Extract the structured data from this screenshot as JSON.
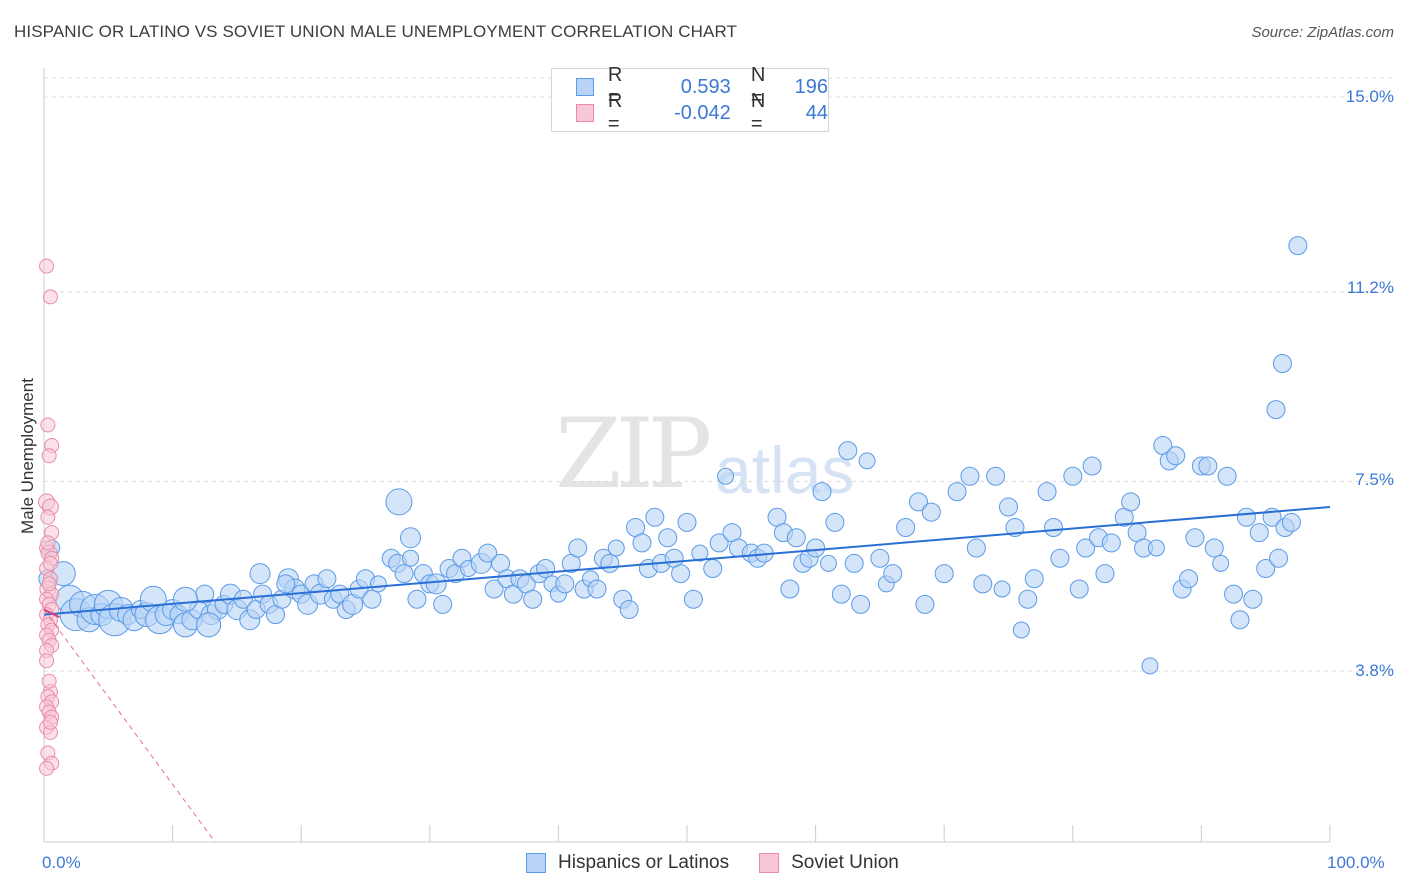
{
  "title": "HISPANIC OR LATINO VS SOVIET UNION MALE UNEMPLOYMENT CORRELATION CHART",
  "source": "Source: ZipAtlas.com",
  "watermark": {
    "zip": "ZIP",
    "atlas": "atlas"
  },
  "legend": {
    "rows": [
      {
        "r_label": "R =",
        "r_value": "0.593",
        "n_label": "N =",
        "n_value": "196",
        "color": "#5b9be8",
        "fill": "#b8d3f5"
      },
      {
        "r_label": "R =",
        "r_value": "-0.042",
        "n_label": "N =",
        "n_value": "44",
        "color": "#ea8bab",
        "fill": "#f8c8d6"
      }
    ]
  },
  "bottom_legend": [
    "Hispanics or Latinos",
    "Soviet Union"
  ],
  "colors": {
    "blue": "#5b9be8",
    "blue_fill": "#b8d3f5",
    "blue_line": "#2a6fd6",
    "pink": "#ea8bab",
    "pink_fill": "#f8c8d6",
    "tick": "#3b78d8"
  },
  "chart_data": {
    "type": "scatter",
    "title": "HISPANIC OR LATINO VS SOVIET UNION MALE UNEMPLOYMENT CORRELATION CHART",
    "xlabel": "",
    "ylabel": "Male Unemployment",
    "xlim": [
      0,
      100
    ],
    "ylim": [
      0,
      15.5
    ],
    "x_tick_labels": [
      "0.0%",
      "100.0%"
    ],
    "y_ticks": [
      3.8,
      7.5,
      11.2,
      15.0
    ],
    "y_tick_labels": [
      "3.8%",
      "7.5%",
      "11.2%",
      "15.0%"
    ],
    "grid": true,
    "legend_position": "top-center",
    "series": [
      {
        "name": "Hispanics or Latinos",
        "trend": [
          [
            0,
            4.9
          ],
          [
            100,
            7.0
          ]
        ],
        "points": [
          [
            0.3,
            5.6,
            9
          ],
          [
            0.6,
            6.2,
            8
          ],
          [
            1.5,
            5.7,
            12
          ],
          [
            2.0,
            5.2,
            14
          ],
          [
            2.5,
            4.9,
            16
          ],
          [
            3.0,
            5.1,
            13
          ],
          [
            3.5,
            4.8,
            12
          ],
          [
            4.0,
            5.0,
            15
          ],
          [
            4.5,
            4.9,
            11
          ],
          [
            5.0,
            5.1,
            14
          ],
          [
            5.5,
            4.8,
            16
          ],
          [
            6.0,
            5.0,
            12
          ],
          [
            6.5,
            4.9,
            10
          ],
          [
            7.0,
            4.8,
            11
          ],
          [
            7.5,
            5.0,
            9
          ],
          [
            8.0,
            4.9,
            12
          ],
          [
            8.5,
            5.2,
            13
          ],
          [
            9.0,
            4.8,
            14
          ],
          [
            9.5,
            4.9,
            11
          ],
          [
            10.0,
            5.0,
            10
          ],
          [
            10.5,
            4.9,
            9
          ],
          [
            11.0,
            4.7,
            12
          ],
          [
            11.5,
            4.8,
            10
          ],
          [
            12.0,
            5.0,
            9
          ],
          [
            12.5,
            5.3,
            9
          ],
          [
            13.0,
            4.9,
            10
          ],
          [
            13.5,
            5.0,
            10
          ],
          [
            14.0,
            5.1,
            9
          ],
          [
            14.5,
            5.3,
            10
          ],
          [
            15.0,
            5.0,
            10
          ],
          [
            15.5,
            5.2,
            9
          ],
          [
            16.0,
            4.8,
            10
          ],
          [
            16.5,
            5.0,
            9
          ],
          [
            17.0,
            5.3,
            9
          ],
          [
            17.5,
            5.1,
            9
          ],
          [
            18.0,
            4.9,
            9
          ],
          [
            18.5,
            5.2,
            9
          ],
          [
            19.0,
            5.6,
            10
          ],
          [
            19.5,
            5.4,
            10
          ],
          [
            20.0,
            5.3,
            9
          ],
          [
            20.5,
            5.1,
            10
          ],
          [
            21.0,
            5.5,
            9
          ],
          [
            21.5,
            5.3,
            10
          ],
          [
            22.0,
            5.6,
            9
          ],
          [
            22.5,
            5.2,
            9
          ],
          [
            23.0,
            5.3,
            9
          ],
          [
            23.5,
            5.0,
            9
          ],
          [
            24.0,
            5.1,
            10
          ],
          [
            24.5,
            5.4,
            9
          ],
          [
            25.0,
            5.6,
            9
          ],
          [
            25.5,
            5.2,
            9
          ],
          [
            26.0,
            5.5,
            8
          ],
          [
            27.0,
            6.0,
            9
          ],
          [
            27.5,
            5.9,
            9
          ],
          [
            28.0,
            5.7,
            9
          ],
          [
            28.5,
            6.0,
            8
          ],
          [
            29.0,
            5.2,
            9
          ],
          [
            29.5,
            5.7,
            9
          ],
          [
            30.0,
            5.5,
            9
          ],
          [
            30.5,
            5.5,
            10
          ],
          [
            31.0,
            5.1,
            9
          ],
          [
            31.5,
            5.8,
            9
          ],
          [
            32.0,
            5.7,
            9
          ],
          [
            32.5,
            6.0,
            9
          ],
          [
            33.0,
            5.8,
            8
          ],
          [
            34.0,
            5.9,
            10
          ],
          [
            34.5,
            6.1,
            9
          ],
          [
            35.0,
            5.4,
            9
          ],
          [
            35.5,
            5.9,
            9
          ],
          [
            36.0,
            5.6,
            9
          ],
          [
            36.5,
            5.3,
            9
          ],
          [
            37.0,
            5.6,
            9
          ],
          [
            37.5,
            5.5,
            9
          ],
          [
            38.0,
            5.2,
            9
          ],
          [
            38.5,
            5.7,
            9
          ],
          [
            39.0,
            5.8,
            9
          ],
          [
            39.5,
            5.5,
            8
          ],
          [
            40.0,
            5.3,
            8
          ],
          [
            40.5,
            5.5,
            9
          ],
          [
            41.0,
            5.9,
            9
          ],
          [
            41.5,
            6.2,
            9
          ],
          [
            42.0,
            5.4,
            9
          ],
          [
            42.5,
            5.6,
            8
          ],
          [
            43.0,
            5.4,
            9
          ],
          [
            43.5,
            6.0,
            9
          ],
          [
            44.0,
            5.9,
            9
          ],
          [
            44.5,
            6.2,
            8
          ],
          [
            45.0,
            5.2,
            9
          ],
          [
            45.5,
            5.0,
            9
          ],
          [
            46.0,
            6.6,
            9
          ],
          [
            46.5,
            6.3,
            9
          ],
          [
            47.0,
            5.8,
            9
          ],
          [
            47.5,
            6.8,
            9
          ],
          [
            48.0,
            5.9,
            9
          ],
          [
            48.5,
            6.4,
            9
          ],
          [
            49.0,
            6.0,
            9
          ],
          [
            49.5,
            5.7,
            9
          ],
          [
            50.0,
            6.7,
            9
          ],
          [
            50.5,
            5.2,
            9
          ],
          [
            51.0,
            6.1,
            8
          ],
          [
            52.0,
            5.8,
            9
          ],
          [
            52.5,
            6.3,
            9
          ],
          [
            53.0,
            7.6,
            8
          ],
          [
            53.5,
            6.5,
            9
          ],
          [
            54.0,
            6.2,
            9
          ],
          [
            55.0,
            6.1,
            9
          ],
          [
            55.5,
            6.0,
            9
          ],
          [
            56.0,
            6.1,
            9
          ],
          [
            57.0,
            6.8,
            9
          ],
          [
            57.5,
            6.5,
            9
          ],
          [
            58.0,
            5.4,
            9
          ],
          [
            58.5,
            6.4,
            9
          ],
          [
            59.0,
            5.9,
            9
          ],
          [
            59.5,
            6.0,
            9
          ],
          [
            60.0,
            6.2,
            9
          ],
          [
            60.5,
            7.3,
            9
          ],
          [
            61.0,
            5.9,
            8
          ],
          [
            61.5,
            6.7,
            9
          ],
          [
            62.0,
            5.3,
            9
          ],
          [
            62.5,
            8.1,
            9
          ],
          [
            63.0,
            5.9,
            9
          ],
          [
            63.5,
            5.1,
            9
          ],
          [
            64.0,
            7.9,
            8
          ],
          [
            65.0,
            6.0,
            9
          ],
          [
            65.5,
            5.5,
            8
          ],
          [
            66.0,
            5.7,
            9
          ],
          [
            67.0,
            6.6,
            9
          ],
          [
            68.0,
            7.1,
            9
          ],
          [
            68.5,
            5.1,
            9
          ],
          [
            69.0,
            6.9,
            9
          ],
          [
            70.0,
            5.7,
            9
          ],
          [
            71.0,
            7.3,
            9
          ],
          [
            72.0,
            7.6,
            9
          ],
          [
            72.5,
            6.2,
            9
          ],
          [
            73.0,
            5.5,
            9
          ],
          [
            74.0,
            7.6,
            9
          ],
          [
            74.5,
            5.4,
            8
          ],
          [
            75.0,
            7.0,
            9
          ],
          [
            75.5,
            6.6,
            9
          ],
          [
            76.0,
            4.6,
            8
          ],
          [
            76.5,
            5.2,
            9
          ],
          [
            77.0,
            5.6,
            9
          ],
          [
            78.0,
            7.3,
            9
          ],
          [
            78.5,
            6.6,
            9
          ],
          [
            79.0,
            6.0,
            9
          ],
          [
            80.0,
            7.6,
            9
          ],
          [
            80.5,
            5.4,
            9
          ],
          [
            81.0,
            6.2,
            9
          ],
          [
            81.5,
            7.8,
            9
          ],
          [
            82.0,
            6.4,
            9
          ],
          [
            82.5,
            5.7,
            9
          ],
          [
            83.0,
            6.3,
            9
          ],
          [
            84.0,
            6.8,
            9
          ],
          [
            84.5,
            7.1,
            9
          ],
          [
            85.0,
            6.5,
            9
          ],
          [
            85.5,
            6.2,
            9
          ],
          [
            86.0,
            3.9,
            8
          ],
          [
            86.5,
            6.2,
            8
          ],
          [
            87.0,
            8.2,
            9
          ],
          [
            87.5,
            7.9,
            9
          ],
          [
            88.0,
            8.0,
            9
          ],
          [
            88.5,
            5.4,
            9
          ],
          [
            89.0,
            5.6,
            9
          ],
          [
            89.5,
            6.4,
            9
          ],
          [
            90.0,
            7.8,
            9
          ],
          [
            90.5,
            7.8,
            9
          ],
          [
            91.0,
            6.2,
            9
          ],
          [
            91.5,
            5.9,
            8
          ],
          [
            92.0,
            7.6,
            9
          ],
          [
            92.5,
            5.3,
            9
          ],
          [
            93.0,
            4.8,
            9
          ],
          [
            93.5,
            6.8,
            9
          ],
          [
            94.0,
            5.2,
            9
          ],
          [
            94.5,
            6.5,
            9
          ],
          [
            95.0,
            5.8,
            9
          ],
          [
            95.5,
            6.8,
            9
          ],
          [
            96.0,
            6.0,
            9
          ],
          [
            96.5,
            6.6,
            9
          ],
          [
            97.0,
            6.7,
            9
          ],
          [
            95.8,
            8.9,
            9
          ],
          [
            96.3,
            9.8,
            9
          ],
          [
            97.5,
            12.1,
            9
          ],
          [
            12.8,
            4.7,
            12
          ],
          [
            16.8,
            5.7,
            10
          ],
          [
            18.8,
            5.5,
            9
          ],
          [
            27.6,
            7.1,
            13
          ],
          [
            28.5,
            6.4,
            10
          ],
          [
            11.0,
            5.2,
            12
          ]
        ]
      },
      {
        "name": "Soviet Union",
        "trend": [
          [
            0,
            5.0
          ],
          [
            13.3,
            0
          ]
        ],
        "points": [
          [
            0.2,
            11.7,
            7
          ],
          [
            0.5,
            11.1,
            7
          ],
          [
            0.3,
            8.6,
            7
          ],
          [
            0.6,
            8.2,
            7
          ],
          [
            0.4,
            8.0,
            7
          ],
          [
            0.2,
            7.1,
            8
          ],
          [
            0.5,
            7.0,
            8
          ],
          [
            0.3,
            6.8,
            7
          ],
          [
            0.6,
            6.5,
            7
          ],
          [
            0.2,
            6.2,
            7
          ],
          [
            0.4,
            6.1,
            8
          ],
          [
            0.6,
            6.0,
            7
          ],
          [
            0.2,
            5.8,
            7
          ],
          [
            0.5,
            5.6,
            7
          ],
          [
            0.3,
            5.4,
            8
          ],
          [
            0.6,
            5.3,
            7
          ],
          [
            0.2,
            5.2,
            7
          ],
          [
            0.4,
            5.1,
            7
          ],
          [
            0.6,
            5.0,
            7
          ],
          [
            0.2,
            4.9,
            7
          ],
          [
            0.5,
            4.8,
            7
          ],
          [
            0.3,
            4.7,
            7
          ],
          [
            0.6,
            4.6,
            7
          ],
          [
            0.2,
            4.5,
            7
          ],
          [
            0.4,
            4.4,
            7
          ],
          [
            0.6,
            4.3,
            7
          ],
          [
            0.2,
            4.2,
            7
          ],
          [
            0.5,
            3.4,
            7
          ],
          [
            0.3,
            3.3,
            7
          ],
          [
            0.6,
            3.2,
            7
          ],
          [
            0.2,
            3.1,
            7
          ],
          [
            0.4,
            3.0,
            7
          ],
          [
            0.6,
            2.9,
            7
          ],
          [
            0.2,
            2.7,
            7
          ],
          [
            0.5,
            2.6,
            7
          ],
          [
            0.3,
            2.2,
            7
          ],
          [
            0.6,
            2.0,
            7
          ],
          [
            0.2,
            1.9,
            7
          ],
          [
            0.5,
            2.8,
            7
          ],
          [
            0.4,
            5.5,
            7
          ],
          [
            0.3,
            6.3,
            7
          ],
          [
            0.5,
            5.9,
            7
          ],
          [
            0.2,
            4.0,
            7
          ],
          [
            0.4,
            3.6,
            7
          ]
        ]
      }
    ]
  }
}
